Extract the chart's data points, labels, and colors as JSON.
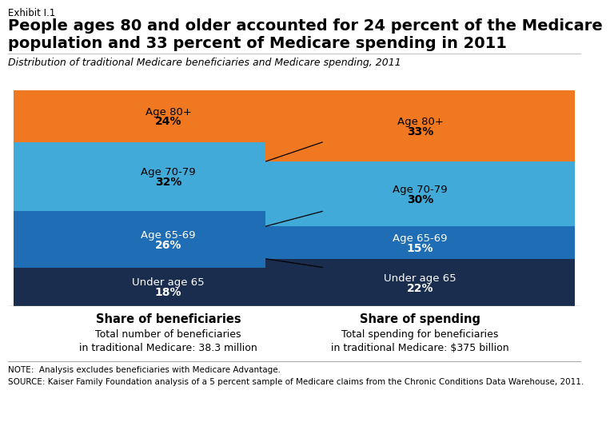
{
  "exhibit_label": "Exhibit I.1",
  "title_line1": "People ages 80 and older accounted for 24 percent of the Medicare",
  "title_line2": "population and 33 percent of Medicare spending in 2011",
  "subtitle": "Distribution of traditional Medicare beneficiaries and Medicare spending, 2011",
  "bar1_label": "Share of beneficiaries",
  "bar1_sublabel1": "Total number of beneficiaries",
  "bar1_sublabel2": "in traditional Medicare: 38.3 million",
  "bar2_label": "Share of spending",
  "bar2_sublabel1": "Total spending for beneficiaries",
  "bar2_sublabel2": "in traditional Medicare: $375 billion",
  "note_line1": "NOTE:  Analysis excludes beneficiaries with Medicare Advantage.",
  "note_line2": "SOURCE: Kaiser Family Foundation analysis of a 5 percent sample of Medicare claims from the Chronic Conditions Data Warehouse, 2011.",
  "categories": [
    "Under age 65",
    "Age 65-69",
    "Age 70-79",
    "Age 80+"
  ],
  "bar1_values": [
    18,
    26,
    32,
    24
  ],
  "bar2_values": [
    22,
    15,
    30,
    33
  ],
  "colors": {
    "Under age 65": "#1b2d4e",
    "Age 65-69": "#1f6db5",
    "Age 70-79": "#42aad8",
    "Age 80+": "#f07820"
  },
  "label_colors_bar1": {
    "Under age 65": "white",
    "Age 65-69": "white",
    "Age 70-79": "black",
    "Age 80+": "black"
  },
  "label_colors_bar2": {
    "Under age 65": "white",
    "Age 65-69": "white",
    "Age 70-79": "black",
    "Age 80+": "black"
  },
  "background_color": "#ffffff",
  "logo_bg": "#1b2d4e",
  "logo_text_color": "white"
}
